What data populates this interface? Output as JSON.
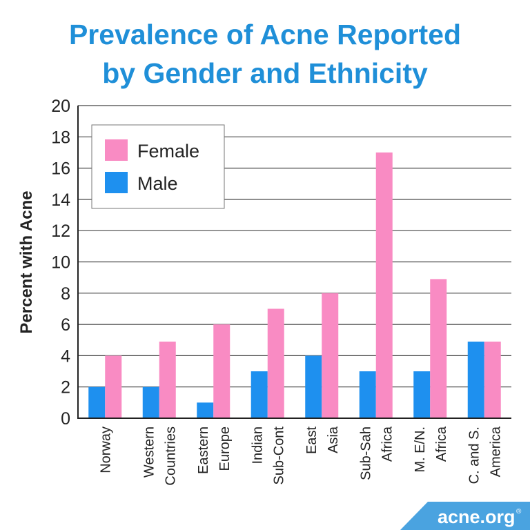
{
  "chart_data": {
    "type": "bar",
    "title": [
      "Prevalence of Acne Reported",
      "by Gender and Ethnicity"
    ],
    "xlabel": "",
    "ylabel": "Percent with Acne",
    "ylim": [
      0,
      20
    ],
    "yticks": [
      0,
      2,
      4,
      6,
      8,
      10,
      12,
      14,
      16,
      18,
      20
    ],
    "grid": true,
    "legend_position": "top-left",
    "categories": [
      [
        "Norway"
      ],
      [
        "Western",
        "Countries"
      ],
      [
        "Eastern",
        "Europe"
      ],
      [
        "Indian",
        "Sub-Cont"
      ],
      [
        "East",
        "Asia"
      ],
      [
        "Sub-Sah",
        "Africa"
      ],
      [
        "M. E/N.",
        "Africa"
      ],
      [
        "C. and S.",
        "America"
      ]
    ],
    "series": [
      {
        "name": "Male",
        "color": "#1e90ef",
        "values": [
          2,
          2,
          1,
          3,
          4,
          3,
          3,
          4.9
        ]
      },
      {
        "name": "Female",
        "color": "#f98bc3",
        "values": [
          4,
          4.9,
          6,
          7,
          8,
          17,
          8.9,
          4.9
        ]
      }
    ],
    "legend": [
      {
        "name": "Female",
        "color": "#f98bc3"
      },
      {
        "name": "Male",
        "color": "#1e90ef"
      }
    ]
  },
  "brand": {
    "text": "acne.org",
    "mark": "®",
    "color": "#4aa3e0"
  }
}
